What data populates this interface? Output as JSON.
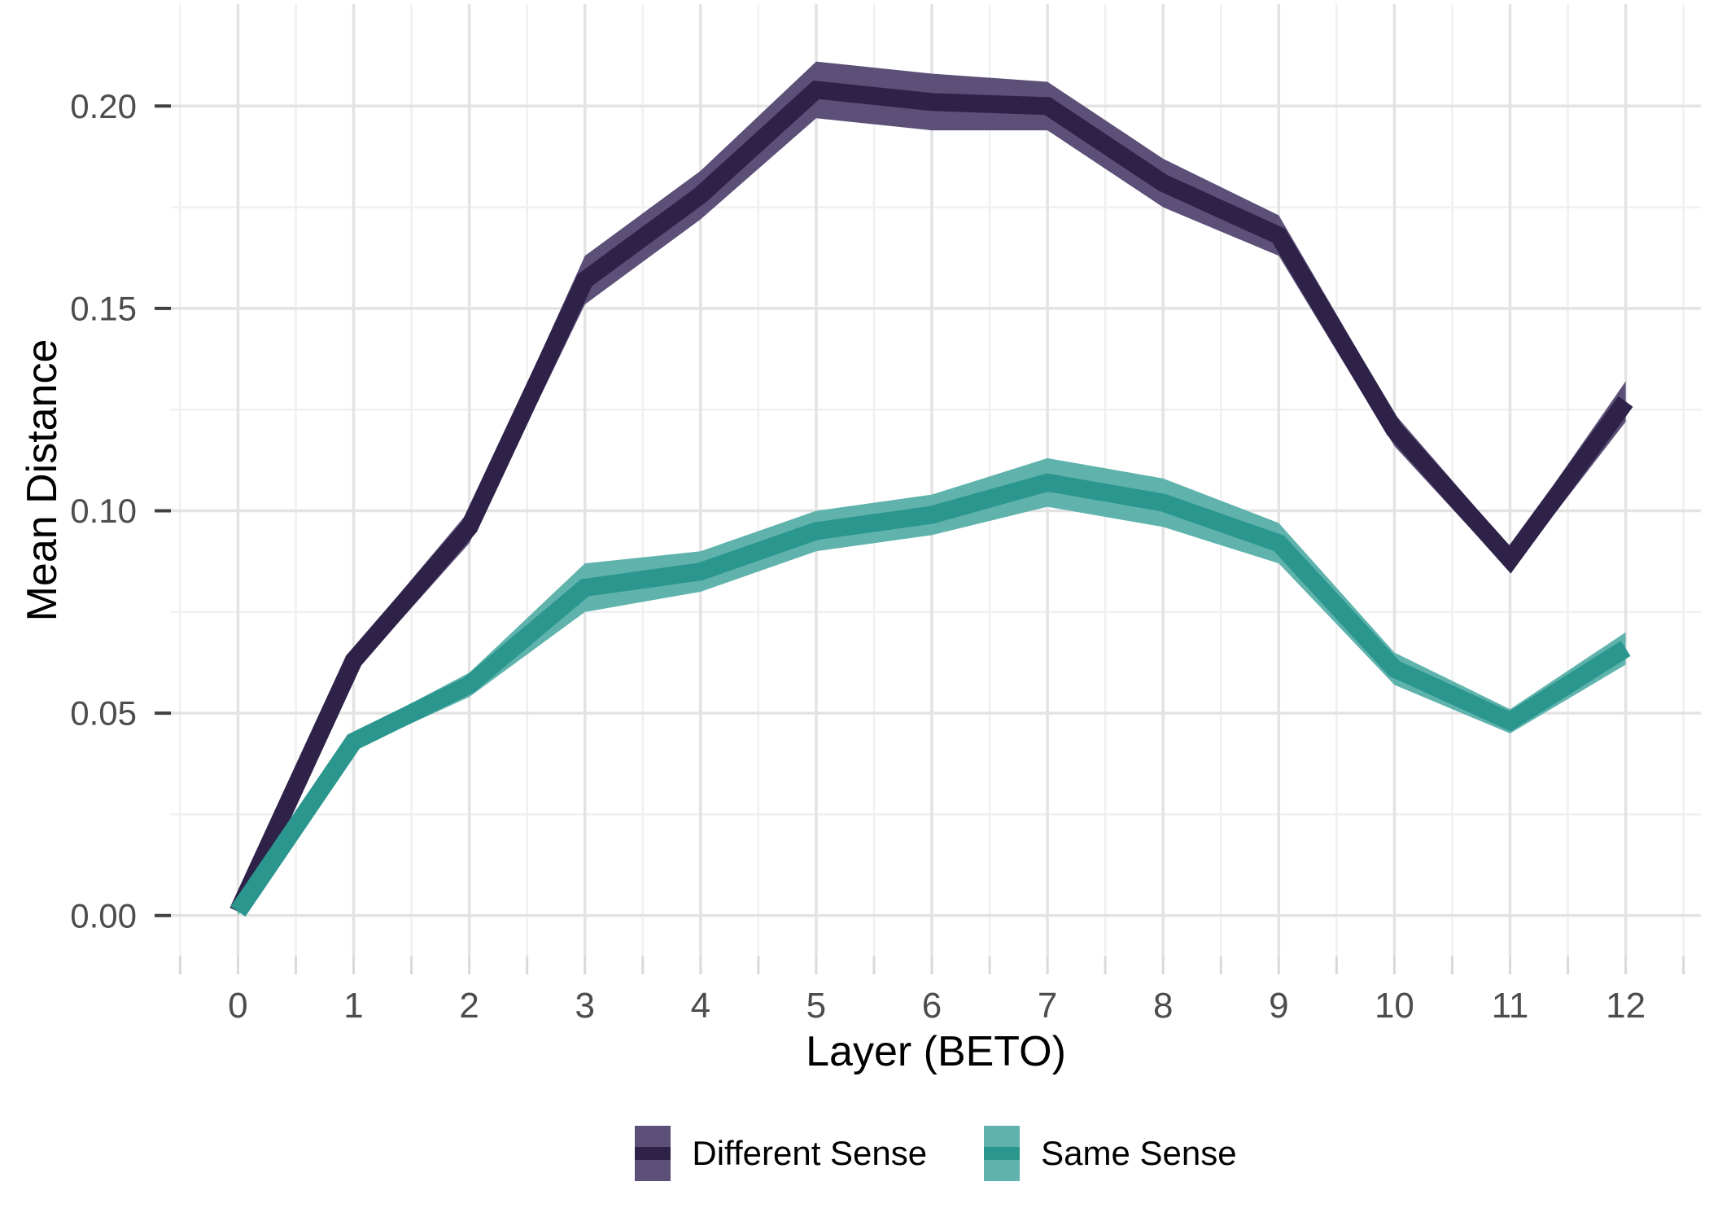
{
  "chart_data": {
    "type": "line",
    "title": "",
    "xlabel": "Layer (BETO)",
    "ylabel": "Mean Distance",
    "x": [
      0,
      1,
      2,
      3,
      4,
      5,
      6,
      7,
      8,
      9,
      10,
      11,
      12
    ],
    "x_tick_labels": [
      "0",
      "1",
      "2",
      "3",
      "4",
      "5",
      "6",
      "7",
      "8",
      "9",
      "10",
      "11",
      "12"
    ],
    "y_tick_values": [
      0,
      0.05,
      0.1,
      0.15,
      0.2
    ],
    "y_tick_labels": [
      "0.00",
      "0.05",
      "0.10",
      "0.15",
      "0.20"
    ],
    "y_minor_tick_values": [
      0.025,
      0.075,
      0.125,
      0.175
    ],
    "x_axis_range": [
      -0.58,
      12.65
    ],
    "y_axis_range": [
      -0.0101,
      0.2252
    ],
    "grid": true,
    "legend_position": "bottom",
    "series": [
      {
        "name": "Different Sense",
        "line_color": "#2E2249",
        "ribbon_color": "#5C5078",
        "values": [
          0.001,
          0.063,
          0.096,
          0.157,
          0.178,
          0.204,
          0.201,
          0.2,
          0.181,
          0.168,
          0.12,
          0.088,
          0.127
        ],
        "ci_half_width": [
          0.001,
          0.003,
          0.004,
          0.006,
          0.006,
          0.007,
          0.007,
          0.006,
          0.006,
          0.005,
          0.004,
          0.003,
          0.005
        ]
      },
      {
        "name": "Same Sense",
        "line_color": "#2B968E",
        "ribbon_color": "#5FB3AC",
        "values": [
          0.001,
          0.043,
          0.057,
          0.081,
          0.085,
          0.095,
          0.099,
          0.107,
          0.102,
          0.092,
          0.061,
          0.048,
          0.066
        ],
        "ci_half_width": [
          0.001,
          0.002,
          0.003,
          0.006,
          0.005,
          0.005,
          0.005,
          0.006,
          0.006,
          0.005,
          0.004,
          0.003,
          0.004
        ]
      }
    ],
    "theme": {
      "grid_major": "#E3E3E3",
      "grid_minor": "#F0F0F0",
      "tick_label_color": "#4D4D4D",
      "axis_title_color": "#000000",
      "y_tick_mark_color": "#404040",
      "x_tick_mark_color": "#D9D9D9",
      "background": "#FFFFFF"
    }
  }
}
